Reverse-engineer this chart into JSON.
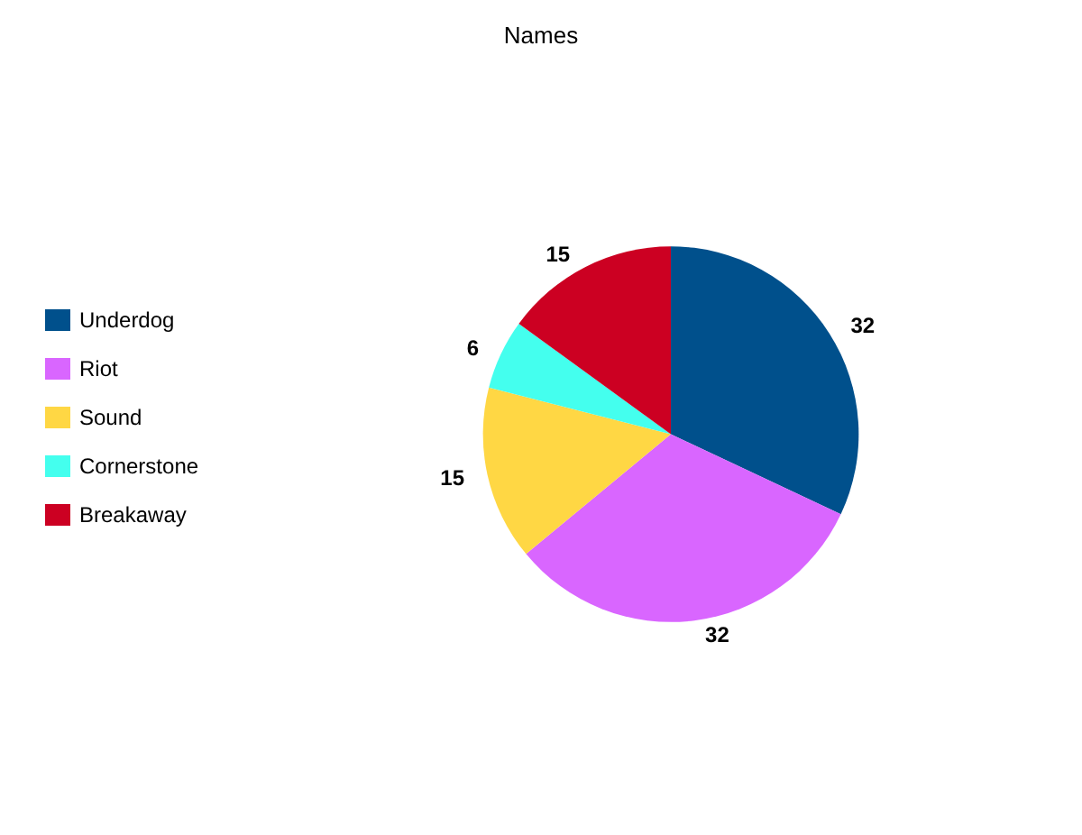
{
  "chart_data": {
    "type": "pie",
    "title": "Names",
    "categories": [
      "Underdog",
      "Riot",
      "Sound",
      "Cornerstone",
      "Breakaway"
    ],
    "values": [
      32,
      32,
      15,
      6,
      15
    ],
    "colors": [
      "#00508c",
      "#d966ff",
      "#ffd744",
      "#44ffee",
      "#cc0022"
    ],
    "data_labels": true,
    "legend": "left"
  }
}
